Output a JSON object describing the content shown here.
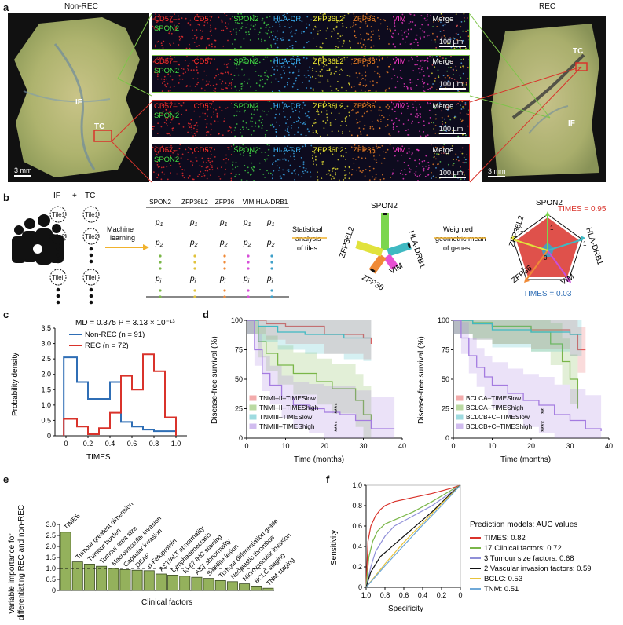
{
  "panel_a": {
    "label": "a",
    "left_title": "Non-REC",
    "right_title": "REC",
    "scalebar_left": "3 mm",
    "scalebar_right": "3 mm",
    "left_if": "IF",
    "left_tc": "TC",
    "right_if": "IF",
    "right_tc": "TC",
    "markers": [
      {
        "text": "CD57",
        "color": "#ff3030"
      },
      {
        "text": "SPON2",
        "color": "#45e04a"
      },
      {
        "text": "HLA-DR",
        "color": "#3fb7ff"
      },
      {
        "text": "ZFP36L2",
        "color": "#f4ee36"
      },
      {
        "text": "ZFP36",
        "color": "#ff8a2a"
      },
      {
        "text": "VIM",
        "color": "#ff3ccf"
      },
      {
        "text": "Merge",
        "color": "#ffffff"
      }
    ],
    "merge_label_a": "CD57–",
    "merge_label_b": "SPON2",
    "scale_text": "100 µm"
  },
  "panel_b": {
    "label": "b",
    "tiles": [
      "Tile1",
      "Tile2",
      "Tilei"
    ],
    "tile_label": "Tile",
    "if_label": "IF",
    "plus": "+",
    "tc_label": "TC",
    "ml_label_1": "Machine",
    "ml_label_2": "learning",
    "genes": [
      "SPON2",
      "ZFP36L2",
      "ZFP36",
      "VIM",
      "HLA-DRB1"
    ],
    "rows": [
      "p1",
      "p2",
      "pi"
    ],
    "stat_1": "Statistical",
    "stat_2": "analysis",
    "stat_3": "of tiles",
    "wgm_1": "Weighted",
    "wgm_2": "geometric mean",
    "wgm_3": "of genes",
    "star_genes": [
      "SPON2",
      "HLA-DRB1",
      "VIM",
      "ZFP36",
      "ZFP36L2"
    ],
    "radar_genes": [
      "SPON2",
      "HLA-DRB1",
      "VIM",
      "ZFP36",
      "ZFP36L2"
    ],
    "times_high": "TIMES = 0.95",
    "times_low": "TIMES = 0.03",
    "radar_axis_labels": [
      "1",
      "0",
      "1",
      "1",
      "1"
    ]
  },
  "panel_c": {
    "label": "c",
    "stats": "MD = 0.375    P = 3.13 × 10⁻¹³",
    "legend": [
      "Non-REC (n = 91)",
      "REC (n = 72)"
    ],
    "xlabel": "TIMES",
    "ylabel": "Probability density"
  },
  "panel_d": {
    "label": "d",
    "ylabel": "Disease-free survival (%)",
    "xlabel": "Time (months)",
    "left_legend": [
      "TNMI–II–TIMESlow",
      "TNMI–II–TIMEShigh",
      "TNMIII–TIMESlow",
      "TNMIII–TIMEShigh"
    ],
    "right_legend": [
      "BCLCA–TIMESlow",
      "BCLCA–TIMEShigh",
      "BCLCB+C–TIMESlow",
      "BCLCB+C–TIMEShigh"
    ],
    "sig": [
      "**",
      "****"
    ]
  },
  "panel_e": {
    "label": "e",
    "ylabel_1": "Variable importance for",
    "ylabel_2": "differentiating REC and non-REC",
    "xlabel": "Clinical factors"
  },
  "panel_f": {
    "label": "f",
    "ylabel": "Sensitivity",
    "xlabel": "Specificity",
    "legend_title": "Prediction models: AUC values",
    "legend": [
      {
        "text": "TIMES: 0.82",
        "color": "#d9332b"
      },
      {
        "text": "17 Clinical factors: 0.72",
        "color": "#7ab648"
      },
      {
        "text": "3 Tumour size factors: 0.68",
        "color": "#8f8fd8"
      },
      {
        "text": "2 Vascular invasion factors: 0.59",
        "color": "#111111"
      },
      {
        "text": "BCLC: 0.53",
        "color": "#e7c33a"
      },
      {
        "text": "TNM: 0.51",
        "color": "#6fa9d8"
      }
    ]
  },
  "chart_data": [
    {
      "type": "line",
      "title": "",
      "xlabel": "TIMES",
      "ylabel": "Probability density",
      "xlim": [
        -0.1,
        1.1
      ],
      "ylim": [
        0,
        3.5
      ],
      "x_ticks": [
        "0",
        "0.2",
        "0.4",
        "0.6",
        "0.8",
        "1.0"
      ],
      "y_ticks": [
        "0",
        "0.5",
        "1.0",
        "1.5",
        "2.0",
        "2.5",
        "3.0",
        "3.5"
      ],
      "bin_edges": [
        -0.02,
        0.1,
        0.2,
        0.3,
        0.4,
        0.5,
        0.6,
        0.7,
        0.8,
        0.9,
        1.0
      ],
      "series": [
        {
          "name": "Non-REC (n = 91)",
          "color": "#2f6eb5",
          "values": [
            2.55,
            1.75,
            1.2,
            1.2,
            1.75,
            0.45,
            0.3,
            0.2,
            0.15,
            0.15
          ]
        },
        {
          "name": "REC (n = 72)",
          "color": "#d9332b",
          "values": [
            0.55,
            0.3,
            0.05,
            0.25,
            0.75,
            1.95,
            1.5,
            2.65,
            2.1,
            0.6
          ]
        }
      ]
    },
    {
      "type": "line",
      "title": "",
      "xlabel": "Time (months)",
      "ylabel": "Disease-free survival (%)",
      "xlim": [
        0,
        40
      ],
      "ylim": [
        0,
        100
      ],
      "x_ticks": [
        "0",
        "10",
        "20",
        "30",
        "40"
      ],
      "y_ticks": [
        "0",
        "25",
        "50",
        "75",
        "100"
      ],
      "series": [
        {
          "name": "TNMI–II–TIMESlow",
          "color": "#e85a5a",
          "x": [
            0,
            5,
            10,
            20,
            30,
            32
          ],
          "y": [
            100,
            97,
            95,
            88,
            85,
            80
          ]
        },
        {
          "name": "TNMI–II–TIMEShigh",
          "color": "#7ab648",
          "x": [
            0,
            3,
            5,
            8,
            12,
            18,
            22,
            28,
            30,
            32
          ],
          "y": [
            100,
            82,
            72,
            62,
            55,
            48,
            42,
            32,
            20,
            15
          ]
        },
        {
          "name": "TNMIII–TIMESlow",
          "color": "#3fb9c2",
          "x": [
            0,
            3,
            8,
            15,
            25,
            30,
            32
          ],
          "y": [
            100,
            95,
            90,
            88,
            85,
            85,
            85
          ]
        },
        {
          "name": "TNMIII–TIMEShigh",
          "color": "#a47be0",
          "x": [
            0,
            2,
            4,
            6,
            9,
            12,
            16,
            20,
            24,
            28,
            32,
            38
          ],
          "y": [
            100,
            75,
            55,
            45,
            35,
            28,
            25,
            22,
            20,
            15,
            8,
            8
          ]
        }
      ]
    },
    {
      "type": "line",
      "title": "",
      "xlabel": "Time (months)",
      "ylabel": "Disease-free survival (%)",
      "xlim": [
        0,
        40
      ],
      "ylim": [
        0,
        100
      ],
      "x_ticks": [
        "0",
        "10",
        "20",
        "30",
        "40"
      ],
      "y_ticks": [
        "0",
        "25",
        "50",
        "75",
        "100"
      ],
      "series": [
        {
          "name": "BCLCA–TIMESlow",
          "color": "#e85a5a",
          "x": [
            0,
            5,
            10,
            20,
            30,
            32,
            34
          ],
          "y": [
            100,
            97,
            95,
            92,
            88,
            75,
            75
          ]
        },
        {
          "name": "BCLCA–TIMEShigh",
          "color": "#7ab648",
          "x": [
            0,
            5,
            10,
            20,
            25,
            28,
            30,
            32
          ],
          "y": [
            100,
            98,
            95,
            90,
            80,
            65,
            50,
            25
          ]
        },
        {
          "name": "BCLCB+C–TIMESlow",
          "color": "#3fb9c2",
          "x": [
            0,
            5,
            10,
            20,
            30,
            33
          ],
          "y": [
            100,
            97,
            92,
            90,
            88,
            88
          ]
        },
        {
          "name": "BCLCB+C–TIMEShigh",
          "color": "#a47be0",
          "x": [
            0,
            2,
            4,
            6,
            8,
            10,
            14,
            18,
            22,
            26,
            30,
            34,
            38
          ],
          "y": [
            100,
            85,
            70,
            60,
            52,
            45,
            38,
            32,
            28,
            20,
            15,
            8,
            6
          ]
        }
      ]
    },
    {
      "type": "bar",
      "title": "",
      "xlabel": "Clinical factors",
      "ylabel": "Variable importance for differentiating REC and non-REC",
      "ylim": [
        0,
        3.0
      ],
      "y_ticks": [
        "0",
        "0.5",
        "1.0",
        "1.5",
        "2.0",
        "2.5",
        "3.0"
      ],
      "categories": [
        "TIMES",
        "Tumour greatest dimension",
        "Tumour burden",
        "Tumour area size",
        "Macrovascular invasion",
        "Capsular invasion",
        "DEAP",
        "α-Fetoprotein",
        "AST/ALT abnormality",
        "Lymphadenectasis",
        "Ki-67 IHC staining",
        "AST abnormality",
        "Satellite lesion",
        "Tumour differentiation grade",
        "Neoplastic thrombus",
        "Microvascular invasion",
        "BCLC staging",
        "TNM staging"
      ],
      "values": [
        2.65,
        1.3,
        1.2,
        1.1,
        1.0,
        0.95,
        0.92,
        0.9,
        0.75,
        0.7,
        0.65,
        0.6,
        0.55,
        0.45,
        0.4,
        0.3,
        0.2,
        0.1
      ],
      "reference_line": 1.0
    },
    {
      "type": "line",
      "title": "",
      "xlabel": "Specificity",
      "ylabel": "Sensitivity",
      "xlim": [
        1.0,
        0
      ],
      "ylim": [
        0,
        1.0
      ],
      "x_ticks": [
        "1.0",
        "0.8",
        "0.6",
        "0.4",
        "0.2",
        "0"
      ],
      "y_ticks": [
        "0",
        "0.2",
        "0.4",
        "0.6",
        "0.8",
        "1.0"
      ],
      "series": [
        {
          "name": "TIMES: 0.82",
          "color": "#d9332b",
          "x": [
            1.0,
            0.98,
            0.95,
            0.9,
            0.85,
            0.8,
            0.7,
            0.5,
            0.3,
            0.1,
            0
          ],
          "y": [
            0,
            0.45,
            0.6,
            0.7,
            0.76,
            0.8,
            0.84,
            0.88,
            0.92,
            0.97,
            1.0
          ]
        },
        {
          "name": "17 Clinical factors: 0.72",
          "color": "#7ab648",
          "x": [
            1.0,
            0.97,
            0.93,
            0.88,
            0.8,
            0.7,
            0.5,
            0.3,
            0.1,
            0
          ],
          "y": [
            0,
            0.3,
            0.45,
            0.55,
            0.62,
            0.66,
            0.74,
            0.84,
            0.95,
            1.0
          ]
        },
        {
          "name": "3 Tumour size factors: 0.68",
          "color": "#8f8fd8",
          "x": [
            1.0,
            0.95,
            0.9,
            0.8,
            0.7,
            0.5,
            0.3,
            0.1,
            0
          ],
          "y": [
            0,
            0.2,
            0.35,
            0.5,
            0.6,
            0.7,
            0.8,
            0.93,
            1.0
          ]
        },
        {
          "name": "2 Vascular invasion factors: 0.59",
          "color": "#111111",
          "x": [
            1.0,
            0.95,
            0.85,
            0.7,
            0.5,
            0.3,
            0.1,
            0
          ],
          "y": [
            0,
            0.15,
            0.3,
            0.42,
            0.58,
            0.74,
            0.92,
            1.0
          ]
        },
        {
          "name": "BCLC: 0.53",
          "color": "#e7c33a",
          "x": [
            1.0,
            0.8,
            0.6,
            0.4,
            0.2,
            0
          ],
          "y": [
            0,
            0.23,
            0.44,
            0.63,
            0.82,
            1.0
          ]
        },
        {
          "name": "TNM: 0.51",
          "color": "#6fa9d8",
          "x": [
            1.0,
            0.8,
            0.6,
            0.4,
            0.2,
            0
          ],
          "y": [
            0,
            0.21,
            0.41,
            0.61,
            0.8,
            1.0
          ]
        }
      ]
    }
  ]
}
